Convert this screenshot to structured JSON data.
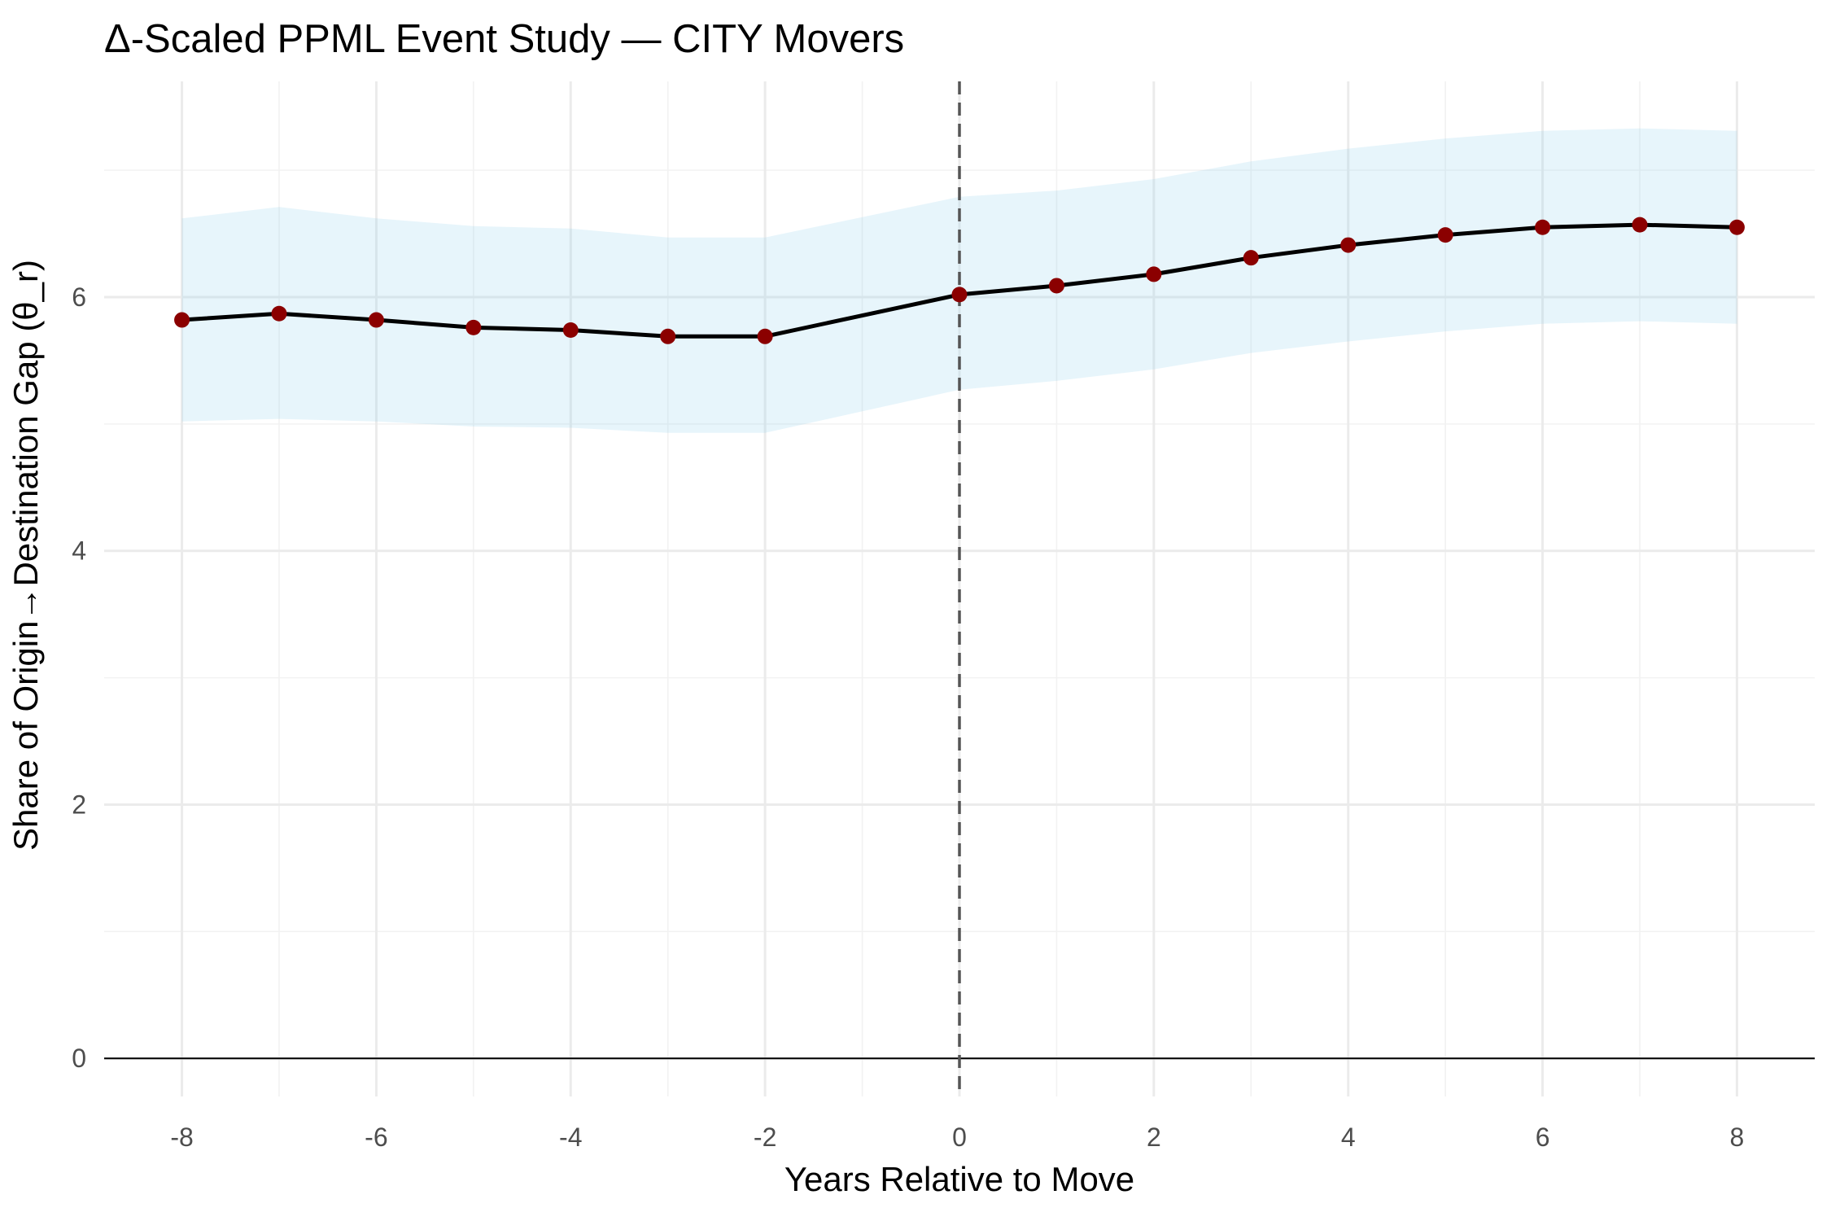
{
  "chart_data": {
    "type": "line",
    "title": "Δ-Scaled PPML Event Study — CITY Movers",
    "xlabel": "Years Relative to Move",
    "ylabel": "Share of Origin→Destination Gap (θ_r)",
    "xlim": [
      -8.8,
      8.8
    ],
    "ylim": [
      -0.3,
      7.7
    ],
    "x_ticks": [
      -8,
      -6,
      -4,
      -2,
      0,
      2,
      4,
      6,
      8
    ],
    "y_ticks": [
      0,
      2,
      4,
      6
    ],
    "grid": true,
    "legend": "none",
    "reference_lines": {
      "hline_y": 0,
      "vline_x": 0,
      "vline_style": "dashed"
    },
    "series": [
      {
        "x": [
          -8,
          -7,
          -6,
          -5,
          -4,
          -3,
          -2,
          0,
          1,
          2,
          3,
          4,
          5,
          6,
          7,
          8
        ],
        "values": [
          5.82,
          5.87,
          5.82,
          5.76,
          5.74,
          5.69,
          5.69,
          6.02,
          6.09,
          6.18,
          6.31,
          6.41,
          6.49,
          6.55,
          6.57,
          6.55
        ],
        "ci_low": [
          5.02,
          5.04,
          5.02,
          4.98,
          4.97,
          4.93,
          4.93,
          5.27,
          5.34,
          5.43,
          5.56,
          5.65,
          5.73,
          5.79,
          5.81,
          5.79
        ],
        "ci_high": [
          6.62,
          6.71,
          6.62,
          6.56,
          6.54,
          6.47,
          6.47,
          6.79,
          6.84,
          6.93,
          7.07,
          7.17,
          7.25,
          7.31,
          7.33,
          7.31
        ]
      }
    ],
    "colors": {
      "line": "#000000",
      "points": "#8b0000",
      "ribbon": "#87ceeb",
      "zero_line": "#000000",
      "event_line": "#555555"
    }
  }
}
